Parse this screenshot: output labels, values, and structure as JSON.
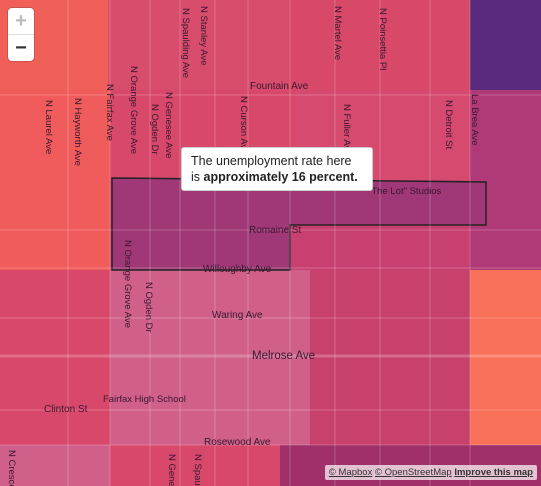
{
  "map": {
    "streets_vertical": [
      {
        "label": "N Spaulding Ave"
      },
      {
        "label": "N Stanley Ave"
      },
      {
        "label": "N Martel Ave"
      },
      {
        "label": "N Poinsettia Pl"
      },
      {
        "label": "N Orange Grove Ave"
      },
      {
        "label": "N Genesee Ave"
      },
      {
        "label": "N Curson Ave"
      },
      {
        "label": "N Fuller Ave"
      },
      {
        "label": "N Detroit St"
      },
      {
        "label": "La Brea Ave"
      },
      {
        "label": "N Laurel Ave"
      },
      {
        "label": "N Hayworth Ave"
      },
      {
        "label": "N Fairfax Ave"
      },
      {
        "label": "N Ogden Dr"
      },
      {
        "label": "N Orange Grove Ave"
      },
      {
        "label": "N Ogden Dr"
      },
      {
        "label": "N Cresce"
      },
      {
        "label": "N Gene"
      },
      {
        "label": "N Spauld"
      }
    ],
    "streets_horizontal": [
      {
        "label": "Fountain Ave"
      },
      {
        "label": "Romaine St"
      },
      {
        "label": "Willoughby Ave"
      },
      {
        "label": "Waring Ave"
      },
      {
        "label": "Melrose Ave"
      },
      {
        "label": "Clinton St"
      },
      {
        "label": "Rosewood Ave"
      }
    ],
    "places": [
      {
        "label": "\"The Lot\" Studios"
      },
      {
        "label": "Fairfax High School"
      }
    ]
  },
  "zoom": {
    "in": "+",
    "out": "−"
  },
  "tooltip": {
    "prefix": "The unemployment rate here is",
    "highlight": "approximately 16 percent."
  },
  "attribution": {
    "mapbox": "© Mapbox",
    "osm": "© OpenStreetMap",
    "improve": "Improve this map"
  }
}
